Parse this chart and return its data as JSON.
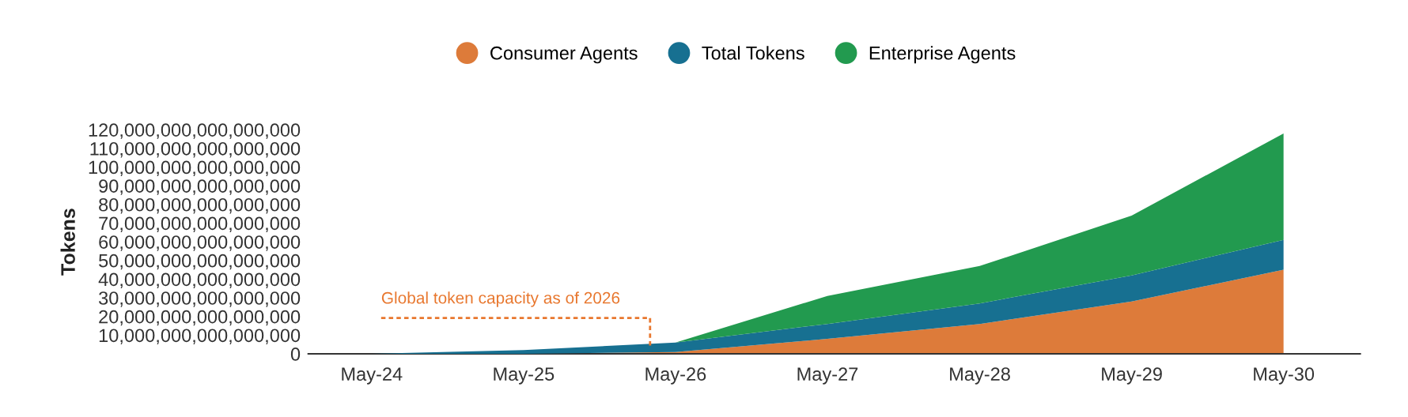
{
  "chart_data": {
    "type": "area",
    "stacked": true,
    "ylabel": "Tokens",
    "x": [
      "2024-05",
      "2025-05",
      "2026-05",
      "2027-05",
      "2028-05",
      "2029-05",
      "2030-05"
    ],
    "series": [
      {
        "name": "Consumer Agents",
        "color": "#dd7b3a",
        "values": [
          0,
          0,
          1000000000000000,
          8000000000000000,
          16000000000000000,
          28000000000000000,
          45000000000000000
        ]
      },
      {
        "name": "Total Tokens",
        "color": "#177091",
        "values": [
          0,
          2000000000000000,
          5000000000000000,
          8000000000000000,
          11000000000000000,
          14000000000000000,
          16000000000000000
        ]
      },
      {
        "name": "Enterprise Agents",
        "color": "#229a4f",
        "values": [
          0,
          0,
          0,
          15000000000000000,
          20000000000000000,
          32000000000000000,
          57000000000000000
        ]
      }
    ],
    "xlim": [
      "2023-12",
      "2030-11"
    ],
    "xticks": [
      {
        "value": "2024-05",
        "label": "May-24"
      },
      {
        "value": "2025-05",
        "label": "May-25"
      },
      {
        "value": "2026-05",
        "label": "May-26"
      },
      {
        "value": "2027-05",
        "label": "May-27"
      },
      {
        "value": "2028-05",
        "label": "May-28"
      },
      {
        "value": "2029-05",
        "label": "May-29"
      },
      {
        "value": "2030-05",
        "label": "May-30"
      }
    ],
    "ylim": [
      0,
      120000000000000000
    ],
    "yticks": [
      {
        "value": 0,
        "label": "0"
      },
      {
        "value": 10000000000000000,
        "label": "10,000,000,000,000,000"
      },
      {
        "value": 20000000000000000,
        "label": "20,000,000,000,000,000"
      },
      {
        "value": 30000000000000000,
        "label": "30,000,000,000,000,000"
      },
      {
        "value": 40000000000000000,
        "label": "40,000,000,000,000,000"
      },
      {
        "value": 50000000000000000,
        "label": "50,000,000,000,000,000"
      },
      {
        "value": 60000000000000000,
        "label": "60,000,000,000,000,000"
      },
      {
        "value": 70000000000000000,
        "label": "70,000,000,000,000,000"
      },
      {
        "value": 80000000000000000,
        "label": "80,000,000,000,000,000"
      },
      {
        "value": 90000000000000000,
        "label": "90,000,000,000,000,000"
      },
      {
        "value": 100000000000000000,
        "label": "100,000,000,000,000,000"
      },
      {
        "value": 110000000000000000,
        "label": "110,000,000,000,000,000"
      },
      {
        "value": 120000000000000000,
        "label": "120,000,000,000,000,000"
      }
    ],
    "annotations": [
      {
        "text": "Global token capacity as of 2026",
        "x": "2026-03",
        "y": 4000000000000000
      }
    ],
    "grid": false,
    "legend": "top"
  }
}
